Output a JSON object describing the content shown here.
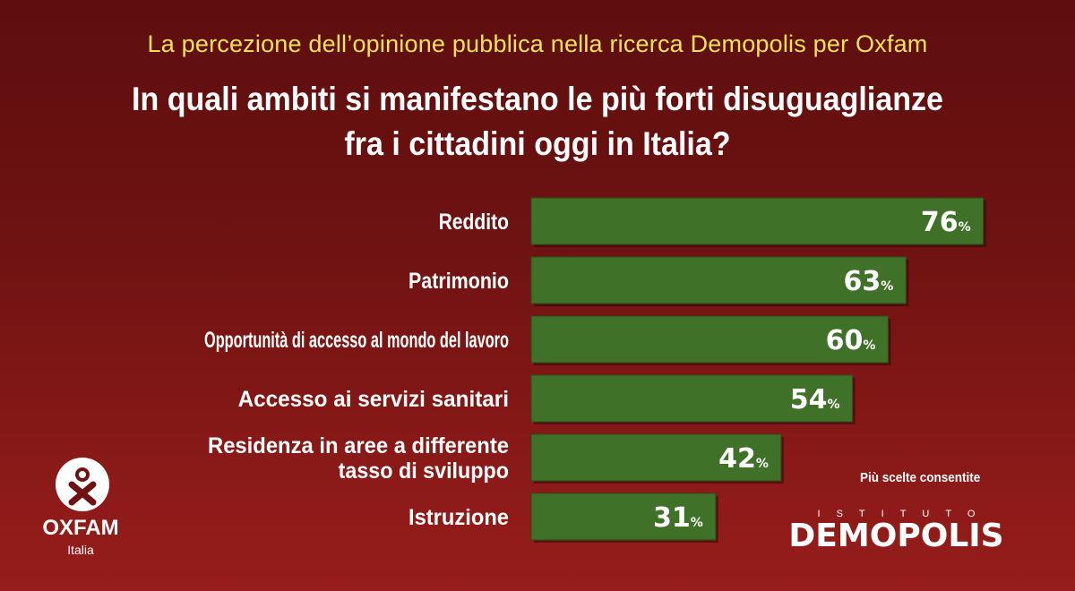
{
  "header": {
    "subtitle": "La percezione dell’opinione pubblica nella ricerca Demopolis per Oxfam",
    "title_line1": "In quali ambiti si manifestano le più forti disuguaglianze",
    "title_line2": "fra i cittadini oggi in Italia?"
  },
  "note": "Più scelte consentite",
  "oxfam": {
    "name": "OXFAM",
    "country": "Italia"
  },
  "demopolis": {
    "istituto": "ISTITUTO",
    "brand": "DEMOPOLIS"
  },
  "colors": {
    "bar": "#3f7128",
    "bar_border": "#2b4f1a",
    "background": "#6e1212",
    "subtitle": "#f4e25c",
    "logo_accent": "#e8a21c"
  },
  "chart_data": {
    "type": "bar",
    "orientation": "horizontal",
    "categories": [
      [
        "Reddito"
      ],
      [
        "Patrimonio"
      ],
      [
        "Opportunità di accesso al mondo del lavoro"
      ],
      [
        "Accesso ai servizi sanitari"
      ],
      [
        "Residenza in aree a differente",
        "tasso di sviluppo"
      ],
      [
        "Istruzione"
      ]
    ],
    "values": [
      76,
      63,
      60,
      54,
      42,
      31
    ],
    "value_suffix": "%",
    "xlim": [
      0,
      100
    ],
    "grid": false
  }
}
